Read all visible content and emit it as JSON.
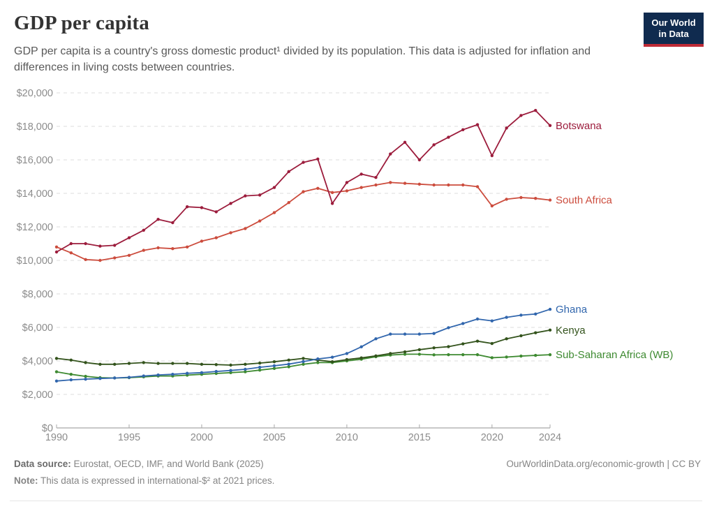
{
  "header": {
    "title": "GDP per capita",
    "subtitle": "GDP per capita is a country's gross domestic product¹ divided by its population. This data is adjusted for inflation and differences in living costs between countries.",
    "logo": {
      "line1": "Our World",
      "line2": "in Data"
    }
  },
  "chart_data": {
    "type": "line",
    "title": "GDP per capita",
    "xlabel": "",
    "ylabel": "",
    "xlim": [
      1990,
      2024
    ],
    "ylim": [
      0,
      20000
    ],
    "x_ticks": [
      1990,
      1995,
      2000,
      2005,
      2010,
      2015,
      2020,
      2024
    ],
    "y_ticks": [
      0,
      2000,
      4000,
      6000,
      8000,
      10000,
      12000,
      14000,
      16000,
      18000,
      20000
    ],
    "y_tick_prefix": "$",
    "grid": "dashed-horizontal",
    "legend_position": "line-end-labels",
    "x": [
      1990,
      1991,
      1992,
      1993,
      1994,
      1995,
      1996,
      1997,
      1998,
      1999,
      2000,
      2001,
      2002,
      2003,
      2004,
      2005,
      2006,
      2007,
      2008,
      2009,
      2010,
      2011,
      2012,
      2013,
      2014,
      2015,
      2016,
      2017,
      2018,
      2019,
      2020,
      2021,
      2022,
      2023,
      2024
    ],
    "series": [
      {
        "name": "Sub-Saharan Africa (WB)",
        "color": "#3e8a31",
        "values": [
          3350,
          3200,
          3080,
          3000,
          2980,
          3000,
          3050,
          3100,
          3100,
          3150,
          3200,
          3250,
          3300,
          3350,
          3450,
          3550,
          3650,
          3800,
          3900,
          3900,
          4000,
          4100,
          4250,
          4350,
          4400,
          4400,
          4360,
          4370,
          4370,
          4370,
          4190,
          4230,
          4290,
          4330,
          4370
        ]
      },
      {
        "name": "Kenya",
        "color": "#33531c",
        "values": [
          4150,
          4050,
          3900,
          3800,
          3800,
          3850,
          3900,
          3850,
          3850,
          3850,
          3800,
          3780,
          3750,
          3800,
          3870,
          3950,
          4050,
          4150,
          4050,
          3950,
          4080,
          4180,
          4300,
          4440,
          4540,
          4670,
          4780,
          4850,
          5020,
          5180,
          5040,
          5320,
          5500,
          5680,
          5840
        ]
      },
      {
        "name": "Ghana",
        "color": "#3166ad",
        "values": [
          2800,
          2870,
          2910,
          2950,
          2980,
          3020,
          3100,
          3160,
          3200,
          3260,
          3300,
          3370,
          3430,
          3500,
          3620,
          3710,
          3810,
          3960,
          4120,
          4220,
          4440,
          4840,
          5320,
          5600,
          5600,
          5600,
          5640,
          5980,
          6230,
          6500,
          6390,
          6600,
          6730,
          6800,
          7080
        ]
      },
      {
        "name": "South Africa",
        "color": "#cc4c3d",
        "values": [
          10800,
          10450,
          10050,
          10000,
          10150,
          10300,
          10600,
          10750,
          10700,
          10800,
          11150,
          11350,
          11650,
          11900,
          12350,
          12850,
          13450,
          14100,
          14300,
          14050,
          14150,
          14350,
          14500,
          14650,
          14600,
          14550,
          14500,
          14500,
          14500,
          14400,
          13250,
          13650,
          13750,
          13700,
          13600
        ]
      },
      {
        "name": "Botswana",
        "color": "#9c1c3c",
        "values": [
          10500,
          11000,
          11000,
          10850,
          10900,
          11350,
          11800,
          12450,
          12250,
          13200,
          13150,
          12900,
          13400,
          13850,
          13900,
          14350,
          15300,
          15850,
          16050,
          13400,
          14650,
          15150,
          14950,
          16350,
          17050,
          16000,
          16900,
          17350,
          17800,
          18100,
          16250,
          17900,
          18650,
          18950,
          18050
        ]
      }
    ]
  },
  "footer": {
    "datasource_label": "Data source:",
    "datasource_text": " Eurostat, OECD, IMF, and World Bank (2025)",
    "note_label": "Note:",
    "note_text": " This data is expressed in international-$² at 2021 prices.",
    "url_text": "OurWorldinData.org/economic-growth | CC BY"
  }
}
